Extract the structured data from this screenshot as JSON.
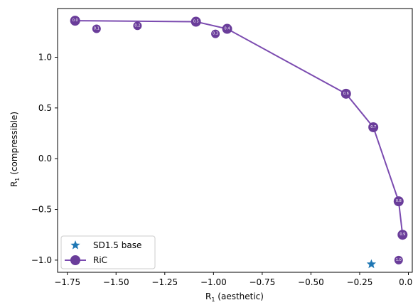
{
  "chart_data": {
    "type": "scatter",
    "xlabel": "R1 (aesthetic)",
    "ylabel": "R1 (compressible)",
    "xlim": [
      -1.8,
      0.02
    ],
    "ylim": [
      -1.12,
      1.48
    ],
    "grid": false,
    "legend_position": "lower-left",
    "x_ticks": [
      "−1.75",
      "−1.50",
      "−1.25",
      "−1.00",
      "−0.75",
      "−0.50",
      "−0.25",
      "0.00"
    ],
    "x_tick_values": [
      -1.75,
      -1.5,
      -1.25,
      -1.0,
      -0.75,
      -0.5,
      -0.25,
      0.0
    ],
    "y_ticks": [
      "1.0",
      "0.5",
      "0.0",
      "−0.5",
      "−1.0"
    ],
    "y_tick_values": [
      1.0,
      0.5,
      0.0,
      -0.5,
      -1.0
    ],
    "series": [
      {
        "name": "SD1.5 base",
        "marker": "star",
        "color": "#1f77b4",
        "points": [
          {
            "x": -0.19,
            "y": -1.04
          }
        ]
      },
      {
        "name": "RiC",
        "marker": "circle",
        "line": true,
        "color": "#6a3d9a",
        "line_color": "#7b4bb0",
        "points": [
          {
            "x": -1.71,
            "y": 1.36,
            "label": "0.0",
            "on_front": true
          },
          {
            "x": -1.6,
            "y": 1.28,
            "label": "0.1",
            "on_front": false
          },
          {
            "x": -1.39,
            "y": 1.31,
            "label": "0.2",
            "on_front": false
          },
          {
            "x": -0.99,
            "y": 1.23,
            "label": "0.3",
            "on_front": false
          },
          {
            "x": -0.93,
            "y": 1.28,
            "label": "0.4",
            "on_front": true
          },
          {
            "x": -1.09,
            "y": 1.35,
            "label": "0.5",
            "on_front": true
          },
          {
            "x": -0.32,
            "y": 0.64,
            "label": "0.6",
            "on_front": true
          },
          {
            "x": -0.18,
            "y": 0.31,
            "label": "0.7",
            "on_front": true
          },
          {
            "x": -0.05,
            "y": -0.42,
            "label": "0.8",
            "on_front": true
          },
          {
            "x": -0.03,
            "y": -0.75,
            "label": "0.9",
            "on_front": true
          },
          {
            "x": -0.05,
            "y": -1.0,
            "label": "1.0",
            "on_front": false
          }
        ],
        "line_order": [
          "0.0",
          "0.5",
          "0.4",
          "0.6",
          "0.7",
          "0.8",
          "0.9"
        ]
      }
    ]
  },
  "legend": {
    "items": [
      {
        "label": "SD1.5 base",
        "marker": "star"
      },
      {
        "label": "RiC",
        "marker": "circle-line"
      }
    ]
  },
  "colors": {
    "star": "#1f77b4",
    "ric": "#6a3d9a",
    "ric_line": "#7b4bb0",
    "axes": "#000000",
    "background": "#ffffff"
  }
}
